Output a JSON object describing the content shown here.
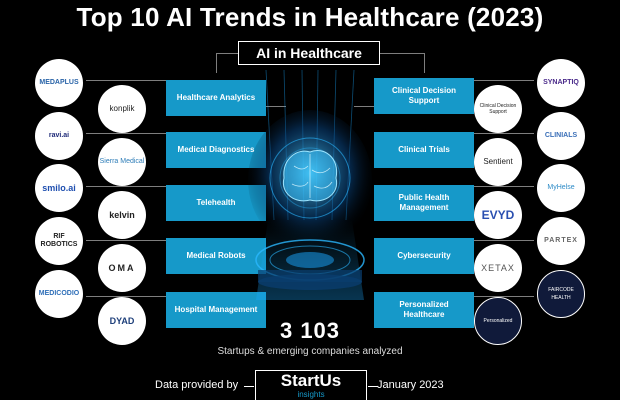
{
  "title": "Top 10 AI Trends in Healthcare (2023)",
  "center_label": "AI in Healthcare",
  "trends_left": [
    "Healthcare Analytics",
    "Medical Diagnostics",
    "Telehealth",
    "Medical Robots",
    "Hospital Management"
  ],
  "trends_right": [
    "Clinical Decision Support",
    "Clinical Trials",
    "Public Health Management",
    "Cybersecurity",
    "Personalized Healthcare"
  ],
  "logos_left_outer": [
    "MEDAPLUS",
    "ravi.ai",
    "smilo.ai",
    "RIF ROBOTICS",
    "MEDICODIO"
  ],
  "logos_left_inner": [
    "konplik",
    "Sierra Medical",
    "kelvin",
    "OMA",
    "DYAD"
  ],
  "logos_right_inner": [
    "Clinical Decision Support",
    "Sentient",
    "EVYD",
    "XETAX",
    "Personalized"
  ],
  "logos_right_outer": [
    "SYNAPTIQ",
    "CLINIALS",
    "MyHelse",
    "PARTEX",
    "FAIRCODE HEALTH"
  ],
  "count": "3 103",
  "count_label": "Startups & emerging companies analyzed",
  "footer_left": "Data provided by",
  "footer_brand": "StartUs",
  "footer_brand_sub": "insights",
  "footer_date": "January 2023",
  "colors": {
    "accent": "#1699c9",
    "background": "#000000"
  }
}
